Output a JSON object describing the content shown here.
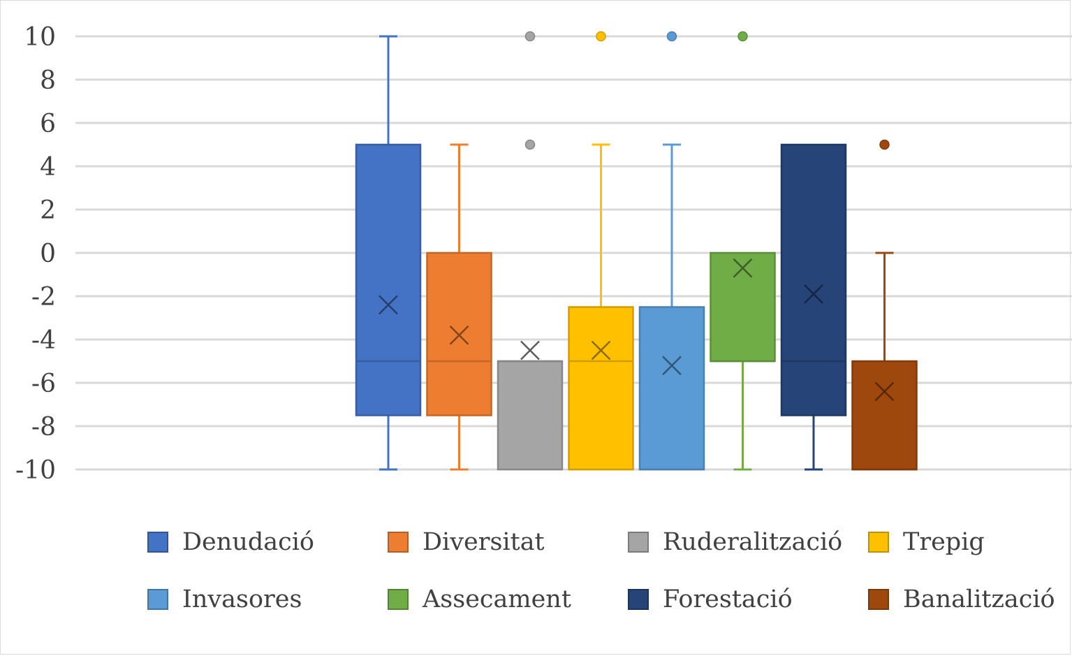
{
  "chart_data": {
    "type": "boxplot",
    "title": "",
    "xlabel": "",
    "ylabel": "",
    "ylim": [
      -10,
      10
    ],
    "yticks": [
      10,
      8,
      6,
      4,
      2,
      0,
      -2,
      -4,
      -6,
      -8,
      -10
    ],
    "ytick_labels": [
      "10",
      "8",
      "6",
      "4",
      "2",
      "0",
      "-2",
      "-4",
      "-6",
      "-8",
      "-10"
    ],
    "grid": true,
    "legend_position": "bottom",
    "series": [
      {
        "name": "Denudació",
        "color": "#4472C4",
        "whisker_low": -10,
        "q1": -7.5,
        "median": -5,
        "q3": 5,
        "whisker_high": 10,
        "mean": -2.4,
        "outliers": []
      },
      {
        "name": "Diversitat",
        "color": "#ED7D31",
        "whisker_low": -10,
        "q1": -7.5,
        "median": -5,
        "q3": 0,
        "whisker_high": 5,
        "mean": -3.8,
        "outliers": []
      },
      {
        "name": "Ruderalització",
        "color": "#A5A5A5",
        "whisker_low": -10,
        "q1": -10,
        "median": -5,
        "q3": -5,
        "whisker_high": -5,
        "mean": -4.5,
        "outliers": [
          5,
          10
        ]
      },
      {
        "name": "Trepig",
        "color": "#FFC000",
        "whisker_low": -10,
        "q1": -10,
        "median": -5,
        "q3": -2.5,
        "whisker_high": 5,
        "mean": -4.5,
        "outliers": [
          10
        ]
      },
      {
        "name": "Invasores",
        "color": "#5B9BD5",
        "whisker_low": -10,
        "q1": -10,
        "median": -10,
        "q3": -2.5,
        "whisker_high": 5,
        "mean": -5.2,
        "outliers": [
          10
        ]
      },
      {
        "name": "Assecament",
        "color": "#70AD47",
        "whisker_low": -10,
        "q1": -5,
        "median": -5,
        "q3": 0,
        "whisker_high": 0,
        "mean": -0.7,
        "outliers": [
          10
        ]
      },
      {
        "name": "Forestació",
        "color": "#264478",
        "whisker_low": -10,
        "q1": -7.5,
        "median": -5,
        "q3": 5,
        "whisker_high": 5,
        "mean": -1.9,
        "outliers": []
      },
      {
        "name": "Banalització",
        "color": "#9E480E",
        "whisker_low": -10,
        "q1": -10,
        "median": -10,
        "q3": -5,
        "whisker_high": 0,
        "mean": -6.4,
        "outliers": [
          5
        ]
      }
    ]
  }
}
